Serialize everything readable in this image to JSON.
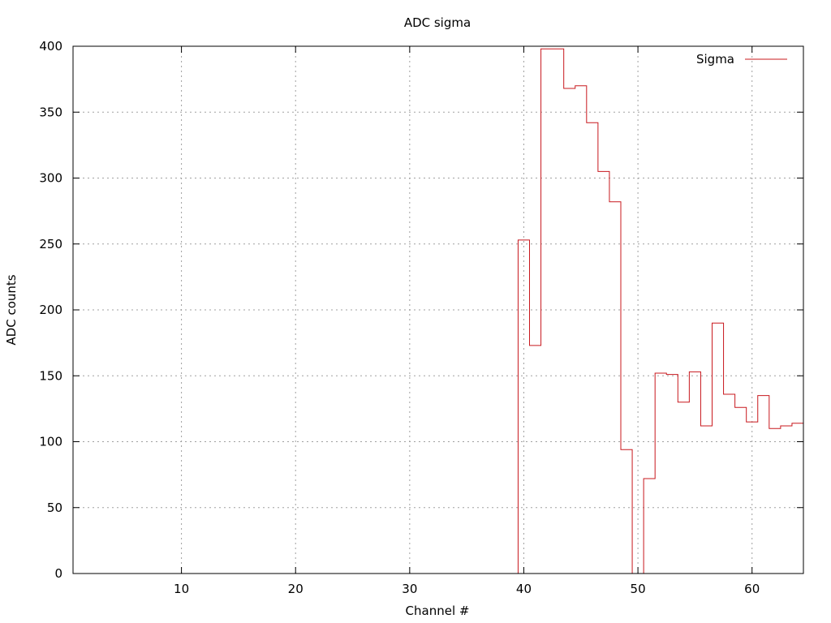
{
  "chart_data": {
    "type": "line",
    "style": "steps",
    "title": "ADC sigma",
    "xlabel": "Channel #",
    "ylabel": "ADC counts",
    "xlim": [
      0.5,
      64.5
    ],
    "ylim": [
      0,
      400
    ],
    "xticks": [
      10,
      20,
      30,
      40,
      50,
      60
    ],
    "yticks": [
      0,
      50,
      100,
      150,
      200,
      250,
      300,
      350,
      400
    ],
    "grid": true,
    "legend_position": "top-right",
    "series": [
      {
        "name": "Sigma",
        "color": "#c8181e",
        "x": [
          1,
          2,
          3,
          4,
          5,
          6,
          7,
          8,
          9,
          10,
          11,
          12,
          13,
          14,
          15,
          16,
          17,
          18,
          19,
          20,
          21,
          22,
          23,
          24,
          25,
          26,
          27,
          28,
          29,
          30,
          31,
          32,
          33,
          34,
          35,
          36,
          37,
          38,
          39,
          40,
          41,
          42,
          43,
          44,
          45,
          46,
          47,
          48,
          49,
          50,
          51,
          52,
          53,
          54,
          55,
          56,
          57,
          58,
          59,
          60,
          61,
          62,
          63,
          64
        ],
        "values": [
          0,
          0,
          0,
          0,
          0,
          0,
          0,
          0,
          0,
          0,
          0,
          0,
          0,
          0,
          0,
          0,
          0,
          0,
          0,
          0,
          0,
          0,
          0,
          0,
          0,
          0,
          0,
          0,
          0,
          0,
          0,
          0,
          0,
          0,
          0,
          0,
          0,
          0,
          0,
          253,
          173,
          398,
          398,
          368,
          370,
          342,
          305,
          282,
          94,
          0,
          72,
          152,
          151,
          130,
          153,
          112,
          190,
          136,
          126,
          115,
          135,
          110,
          112,
          114
        ]
      }
    ]
  }
}
